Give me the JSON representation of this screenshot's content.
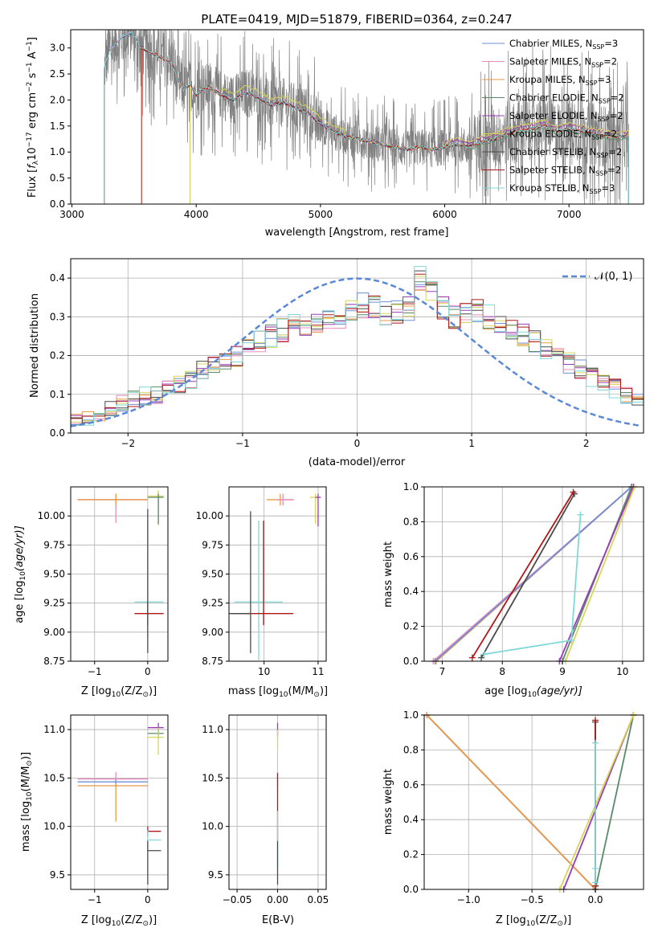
{
  "figure": {
    "title": "PLATE=0419, MJD=51879, FIBERID=0364, z=0.247"
  },
  "legend_base": [
    "Chabrier MILES, N",
    "Salpeter MILES, N",
    "Kroupa MILES, N",
    "Chabrier ELODIE, N",
    "Salpeter ELODIE, N",
    "Kroupa ELODIE, N",
    "Chabrier STELIB, N",
    "Salpeter STELIB, N",
    "Kroupa STELIB, N"
  ],
  "legend_subscript": "SSP",
  "legend_counts": [
    "=3",
    "=2",
    "=3",
    "=2",
    "=2",
    "=2",
    "=2",
    "=2",
    "=3"
  ],
  "legend_colors": [
    "#6f8fd8",
    "#ea8cc0",
    "#e89a44",
    "#5a8a6a",
    "#9a3cb8",
    "#d6d65a",
    "#4a4a4a",
    "#b01818",
    "#80d8d8"
  ],
  "axes_labels": {
    "spectrum_x": "wavelength [Angstrom, rest frame]",
    "spectrum_y_prefix": "Flux [",
    "spectrum_y_f": "f",
    "spectrum_y_lambda": "λ",
    "spectrum_y_mid": "10",
    "spectrum_y_exp": "−17",
    "spectrum_y_unit": " erg cm",
    "spectrum_y_exp2": "−2",
    "spectrum_y_s": " s",
    "spectrum_y_exp3": "−1",
    "spectrum_y_A": " A",
    "spectrum_y_exp4": "−1",
    "spectrum_y_end": "]",
    "hist_x": "(data-model)/error",
    "hist_y": "Normed distribution",
    "hist_legend": "𝒩(0, 1)",
    "age_y_prefix": "age  [log",
    "age_y_sub": "10",
    "age_y_suffix": "(age/yr)]",
    "z_x_prefix": "Z [log",
    "z_x_sub": "10",
    "z_x_suffix": "(Z/Z",
    "z_x_sun": "⊙",
    "z_x_end": ")]",
    "mass_x_prefix": "mass [log",
    "mass_x_sub": "10",
    "mass_x_suffix": "(M/M",
    "mass_x_sun": "⊙",
    "mass_x_end": ")]",
    "mass_weight": "mass weight",
    "ebv": "E(B-V)"
  },
  "chart_data": [
    {
      "id": "spectrum",
      "type": "line",
      "title": "PLATE=0419, MJD=51879, FIBERID=0364, z=0.247",
      "xlim": [
        2990,
        7600
      ],
      "ylim": [
        0,
        3.35
      ],
      "xticks": [
        3000,
        4000,
        5000,
        6000,
        7000
      ],
      "yticks": [
        0.0,
        0.5,
        1.0,
        1.5,
        2.0,
        2.5,
        3.0
      ],
      "xtick_labels": [
        "3000",
        "4000",
        "5000",
        "6000",
        "7000"
      ],
      "ytick_labels": [
        "0.0",
        "0.5",
        "1.0",
        "1.5",
        "2.0",
        "2.5",
        "3.0"
      ],
      "data_range": [
        3260,
        7480
      ],
      "model_points_x": [
        3260,
        3300,
        3400,
        3480,
        3500,
        3540,
        3600,
        3700,
        3800,
        3850,
        3900,
        3950,
        4000,
        4050,
        4100,
        4200,
        4300,
        4400,
        4500,
        4600,
        4700,
        4800,
        4900,
        5000,
        5100,
        5200,
        5300,
        5400,
        5500,
        5600,
        5700,
        5800,
        5900,
        6000,
        6100,
        6200,
        6300,
        6400,
        6500,
        6600,
        6700,
        6800,
        6900,
        7000,
        7100,
        7200,
        7300,
        7400
      ],
      "model_points_y": [
        2.6,
        2.95,
        3.2,
        3.3,
        3.25,
        3.05,
        2.95,
        2.85,
        2.7,
        2.4,
        2.2,
        2.3,
        2.1,
        2.2,
        2.25,
        2.1,
        2.0,
        2.15,
        2.05,
        1.9,
        1.95,
        1.85,
        1.75,
        1.55,
        1.4,
        1.3,
        1.25,
        1.2,
        1.15,
        1.1,
        1.05,
        1.1,
        1.05,
        1.1,
        1.15,
        1.1,
        1.2,
        1.25,
        1.35,
        1.4,
        1.45,
        1.5,
        1.4,
        1.45,
        1.4,
        1.35,
        1.3,
        1.3
      ],
      "series": [
        {
          "name": "Chabrier MILES, NSSP=3"
        },
        {
          "name": "Salpeter MILES, NSSP=2"
        },
        {
          "name": "Kroupa MILES, NSSP=3"
        },
        {
          "name": "Chabrier ELODIE, NSSP=2"
        },
        {
          "name": "Salpeter ELODIE, NSSP=2"
        },
        {
          "name": "Kroupa ELODIE, NSSP=2"
        },
        {
          "name": "Chabrier STELIB, NSSP=2"
        },
        {
          "name": "Salpeter STELIB, NSSP=2"
        },
        {
          "name": "Kroupa STELIB, NSSP=3"
        }
      ],
      "xlabel": "wavelength [Angstrom, rest frame]",
      "grid": false,
      "legend_position": "upper-right"
    },
    {
      "id": "residual_hist",
      "type": "histogram",
      "xlim": [
        -2.5,
        2.5
      ],
      "ylim": [
        0,
        0.45
      ],
      "xticks": [
        -2,
        -1,
        0,
        1,
        2
      ],
      "yticks": [
        0.0,
        0.1,
        0.2,
        0.3,
        0.4
      ],
      "xtick_labels": [
        "−2",
        "−1",
        "0",
        "1",
        "2"
      ],
      "ytick_labels": [
        "0.0",
        "0.1",
        "0.2",
        "0.3",
        "0.4"
      ],
      "bin_width": 0.1,
      "bin_start": -2.5,
      "base_heights": [
        0.03,
        0.035,
        0.05,
        0.06,
        0.075,
        0.085,
        0.095,
        0.1,
        0.11,
        0.125,
        0.14,
        0.16,
        0.175,
        0.19,
        0.2,
        0.22,
        0.235,
        0.25,
        0.265,
        0.275,
        0.28,
        0.285,
        0.29,
        0.3,
        0.315,
        0.33,
        0.325,
        0.31,
        0.315,
        0.32,
        0.4,
        0.36,
        0.32,
        0.3,
        0.31,
        0.32,
        0.3,
        0.28,
        0.27,
        0.255,
        0.235,
        0.22,
        0.2,
        0.18,
        0.165,
        0.145,
        0.13,
        0.115,
        0.1,
        0.09,
        0.085,
        0.075,
        0.07,
        0.065,
        0.06,
        0.055,
        0.05,
        0.05,
        0.045,
        0.04
      ],
      "gaussian": {
        "mu": 0,
        "sigma": 1,
        "label": "𝒩(0, 1)"
      },
      "xlabel": "(data-model)/error",
      "ylabel": "Normed distribution",
      "grid": true,
      "legend_position": "upper-right"
    },
    {
      "id": "age_vs_Z",
      "type": "errorbar",
      "xlim": [
        -1.45,
        0.38
      ],
      "ylim": [
        8.75,
        10.25
      ],
      "xticks": [
        -1,
        0
      ],
      "yticks": [
        8.75,
        9.0,
        9.25,
        9.5,
        9.75,
        10.0
      ],
      "xtick_labels": [
        "−1",
        "0"
      ],
      "ytick_labels": [
        "8.75",
        "9.00",
        "9.25",
        "9.50",
        "9.75",
        "10.00"
      ],
      "grid": true,
      "points": [
        {
          "series": 1,
          "x": -0.6,
          "xerr": [
            0.72,
            0.6
          ],
          "y": 10.14,
          "yerr": [
            0.2,
            0.05
          ]
        },
        {
          "series": 2,
          "x": -0.6,
          "xerr": [
            0.72,
            0.6
          ],
          "y": 10.14,
          "yerr": [
            0.05,
            0.05
          ]
        },
        {
          "series": 5,
          "x": 0.2,
          "xerr": [
            0.2,
            0.1
          ],
          "y": 10.17,
          "yerr": [
            0.25,
            0.05
          ]
        },
        {
          "series": 3,
          "x": 0.2,
          "xerr": [
            0.2,
            0.1
          ],
          "y": 10.16,
          "yerr": [
            0.23,
            0.03
          ]
        },
        {
          "series": 8,
          "x": 0.0,
          "xerr": [
            0.25,
            0.3
          ],
          "y": 9.26,
          "yerr": [
            0.3,
            0.7
          ]
        },
        {
          "series": 7,
          "x": 0.0,
          "xerr": [
            0.25,
            0.3
          ],
          "y": 9.16,
          "yerr": [
            0.1,
            0.1
          ]
        },
        {
          "series": 6,
          "x": 0.0,
          "xerr": [
            0.0,
            0.0
          ],
          "y": 9.16,
          "yerr": [
            0.34,
            0.9
          ]
        }
      ]
    },
    {
      "id": "age_vs_mass",
      "type": "errorbar",
      "xlim": [
        9.35,
        11.15
      ],
      "ylim": [
        8.75,
        10.25
      ],
      "xticks": [
        10,
        11
      ],
      "yticks": [
        8.75,
        9.0,
        9.25,
        9.5,
        9.75,
        10.0
      ],
      "xtick_labels": [
        "10",
        "11"
      ],
      "ytick_labels": [
        "8.75",
        "9.00",
        "9.25",
        "9.50",
        "9.75",
        "10.00"
      ],
      "grid": true,
      "points": [
        {
          "series": 2,
          "x": 10.3,
          "xerr": [
            0.25,
            0.25
          ],
          "y": 10.14,
          "yerr": [
            0.05,
            0.05
          ]
        },
        {
          "series": 1,
          "x": 10.35,
          "xerr": [
            0.1,
            0.2
          ],
          "y": 10.14,
          "yerr": [
            0.05,
            0.05
          ]
        },
        {
          "series": 5,
          "x": 10.95,
          "xerr": [
            0.1,
            0.1
          ],
          "y": 10.16,
          "yerr": [
            0.23,
            0.03
          ]
        },
        {
          "series": 4,
          "x": 11.0,
          "xerr": [
            0.05,
            0.05
          ],
          "y": 10.16,
          "yerr": [
            0.25,
            0.03
          ]
        },
        {
          "series": 8,
          "x": 9.9,
          "xerr": [
            0.45,
            0.45
          ],
          "y": 9.26,
          "yerr": [
            0.5,
            0.7
          ]
        },
        {
          "series": 7,
          "x": 9.99,
          "xerr": [
            0.6,
            0.55
          ],
          "y": 9.16,
          "yerr": [
            0.1,
            0.8
          ]
        },
        {
          "series": 6,
          "x": 9.75,
          "xerr": [
            0.4,
            0.0
          ],
          "y": 9.16,
          "yerr": [
            0.34,
            0.88
          ]
        }
      ]
    },
    {
      "id": "massweight_vs_age",
      "type": "line",
      "xlim": [
        6.7,
        10.35
      ],
      "ylim": [
        0,
        1
      ],
      "xticks": [
        7,
        8,
        9,
        10
      ],
      "yticks": [
        0.0,
        0.2,
        0.4,
        0.6,
        0.8,
        1.0
      ],
      "xtick_labels": [
        "7",
        "8",
        "9",
        "10"
      ],
      "ytick_labels": [
        "0.0",
        "0.2",
        "0.4",
        "0.6",
        "0.8",
        "1.0"
      ],
      "ylabel": "mass weight",
      "grid": true,
      "lines": [
        {
          "series": 1,
          "x": [
            6.85,
            10.15
          ],
          "y": [
            0.0,
            1.0
          ]
        },
        {
          "series": 2,
          "x": [
            6.9,
            10.15
          ],
          "y": [
            0.0,
            1.0
          ]
        },
        {
          "series": 0,
          "x": [
            6.88,
            10.15
          ],
          "y": [
            0.0,
            1.0
          ]
        },
        {
          "series": 3,
          "x": [
            9.0,
            10.15
          ],
          "y": [
            0.0,
            1.0
          ]
        },
        {
          "series": 4,
          "x": [
            8.95,
            10.18
          ],
          "y": [
            0.0,
            1.0
          ]
        },
        {
          "series": 5,
          "x": [
            9.05,
            10.2
          ],
          "y": [
            0.0,
            1.0
          ]
        },
        {
          "series": 6,
          "x": [
            7.65,
            9.2
          ],
          "y": [
            0.02,
            0.96
          ]
        },
        {
          "series": 7,
          "x": [
            7.5,
            9.18
          ],
          "y": [
            0.02,
            0.97
          ]
        },
        {
          "series": 8,
          "x": [
            7.7,
            9.15,
            9.3
          ],
          "y": [
            0.04,
            0.12,
            0.84
          ]
        }
      ]
    },
    {
      "id": "mass_vs_Z",
      "type": "errorbar",
      "xlim": [
        -1.45,
        0.38
      ],
      "ylim": [
        9.35,
        11.15
      ],
      "xticks": [
        -1,
        0
      ],
      "yticks": [
        9.5,
        10.0,
        10.5,
        11.0
      ],
      "xtick_labels": [
        "−1",
        "0"
      ],
      "ytick_labels": [
        "9.5",
        "10.0",
        "10.5",
        "11.0"
      ],
      "grid": true,
      "points": [
        {
          "series": 1,
          "x": -0.6,
          "xerr": [
            0.72,
            0.6
          ],
          "y": 10.49,
          "yerr": [
            0.07,
            0.07
          ]
        },
        {
          "series": 0,
          "x": -0.6,
          "xerr": [
            0.72,
            0.6
          ],
          "y": 10.46,
          "yerr": [
            0.02,
            0.02
          ]
        },
        {
          "series": 2,
          "x": -0.6,
          "xerr": [
            0.72,
            0.6
          ],
          "y": 10.42,
          "yerr": [
            0.37,
            0.02
          ]
        },
        {
          "series": 4,
          "x": 0.2,
          "xerr": [
            0.2,
            0.1
          ],
          "y": 11.02,
          "yerr": [
            0.05,
            0.05
          ]
        },
        {
          "series": 3,
          "x": 0.2,
          "xerr": [
            0.2,
            0.1
          ],
          "y": 10.96,
          "yerr": [
            0.05,
            0.05
          ]
        },
        {
          "series": 5,
          "x": 0.2,
          "xerr": [
            0.2,
            0.1
          ],
          "y": 10.92,
          "yerr": [
            0.18,
            0.1
          ]
        },
        {
          "series": 7,
          "x": 0.0,
          "xerr": [
            0.0,
            0.25
          ],
          "y": 9.95,
          "yerr": [
            0.05,
            0.05
          ]
        },
        {
          "series": 8,
          "x": 0.0,
          "xerr": [
            0.0,
            0.25
          ],
          "y": 9.86,
          "yerr": [
            0.1,
            0.1
          ]
        },
        {
          "series": 6,
          "x": 0.0,
          "xerr": [
            0.0,
            0.25
          ],
          "y": 9.75,
          "yerr": [
            0.35,
            0.1
          ]
        }
      ]
    },
    {
      "id": "mass_vs_ebv",
      "type": "errorbar",
      "xlim": [
        -0.06,
        0.06
      ],
      "ylim": [
        9.35,
        11.15
      ],
      "xticks": [
        -0.05,
        0.0,
        0.05
      ],
      "yticks": [
        9.5,
        10.0,
        10.5,
        11.0
      ],
      "xtick_labels": [
        "−0.05",
        "0.00",
        "0.05"
      ],
      "ytick_labels": [
        "9.5",
        "10.0",
        "10.5",
        "11.0"
      ],
      "xlabel": "E(B-V)",
      "grid": true,
      "points": [
        {
          "series": 4,
          "x": 0.0,
          "xerr": [
            0,
            0
          ],
          "y": 11.0,
          "yerr": [
            0.07,
            0.07
          ]
        },
        {
          "series": 5,
          "x": 0.0,
          "xerr": [
            0,
            0
          ],
          "y": 10.92,
          "yerr": [
            0.12,
            0.08
          ]
        },
        {
          "series": 1,
          "x": 0.0,
          "xerr": [
            0,
            0
          ],
          "y": 10.49,
          "yerr": [
            0.07,
            0.07
          ]
        },
        {
          "series": 7,
          "x": 0.0,
          "xerr": [
            0,
            0
          ],
          "y": 9.95,
          "yerr": [
            0.1,
            0.6
          ]
        },
        {
          "series": 8,
          "x": 0.0,
          "xerr": [
            0,
            0
          ],
          "y": 9.86,
          "yerr": [
            0.3,
            0.3
          ]
        },
        {
          "series": 6,
          "x": 0.0,
          "xerr": [
            0,
            0
          ],
          "y": 9.75,
          "yerr": [
            0.35,
            0.1
          ]
        }
      ]
    },
    {
      "id": "massweight_vs_Z",
      "type": "line",
      "xlim": [
        -1.35,
        0.38
      ],
      "ylim": [
        0,
        1
      ],
      "xticks": [
        -1.0,
        -0.5,
        0.0
      ],
      "yticks": [
        0.0,
        0.2,
        0.4,
        0.6,
        0.8,
        1.0
      ],
      "xtick_labels": [
        "−1.0",
        "−0.5",
        "0.0"
      ],
      "ytick_labels": [
        "0.0",
        "0.2",
        "0.4",
        "0.6",
        "0.8",
        "1.0"
      ],
      "ylabel": "mass weight",
      "grid": true,
      "lines": [
        {
          "series": 0,
          "x": [
            -1.33,
            0.0
          ],
          "y": [
            1.0,
            0.0
          ]
        },
        {
          "series": 1,
          "x": [
            -1.33,
            0.0
          ],
          "y": [
            1.0,
            0.0
          ]
        },
        {
          "series": 2,
          "x": [
            -1.33,
            0.0
          ],
          "y": [
            1.0,
            0.0
          ]
        },
        {
          "series": 3,
          "x": [
            0.0,
            0.3
          ],
          "y": [
            0.0,
            1.0
          ]
        },
        {
          "series": 4,
          "x": [
            -0.25,
            0.3
          ],
          "y": [
            0.0,
            1.0
          ]
        },
        {
          "series": 5,
          "x": [
            -0.28,
            0.3
          ],
          "y": [
            0.0,
            1.0
          ]
        },
        {
          "series": 6,
          "x": [
            0.0,
            0.0
          ],
          "y": [
            0.02,
            0.96
          ]
        },
        {
          "series": 7,
          "x": [
            0.0,
            0.0
          ],
          "y": [
            0.02,
            0.97
          ]
        },
        {
          "series": 8,
          "x": [
            0.0,
            0.0,
            0.0
          ],
          "y": [
            0.04,
            0.12,
            0.84
          ]
        }
      ]
    }
  ]
}
